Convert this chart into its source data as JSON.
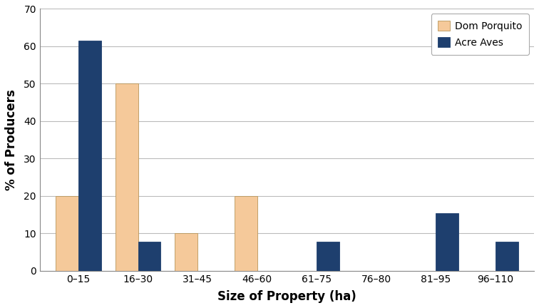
{
  "categories": [
    "0–15",
    "16–30",
    "31–45",
    "46–60",
    "61–75",
    "76–80",
    "81–95",
    "96–110"
  ],
  "dom_porquito": [
    20,
    50,
    10,
    20,
    0,
    0,
    0,
    0
  ],
  "acre_aves": [
    61.5,
    7.7,
    0,
    0,
    7.7,
    0,
    15.4,
    7.7
  ],
  "dom_porquito_color": "#f5c99a",
  "acre_aves_color": "#1e3f6e",
  "dom_porquito_edge": "#b8965a",
  "acre_aves_edge": "#1e3f6e",
  "ylabel": "% of Producers",
  "xlabel": "Size of Property (ha)",
  "ylim": [
    0,
    70
  ],
  "yticks": [
    0,
    10,
    20,
    30,
    40,
    50,
    60,
    70
  ],
  "legend_dom": "Dom Porquito",
  "legend_acre": "Acre Aves",
  "bar_width": 0.38,
  "bg_color": "#ffffff",
  "grid_color": "#bbbbbb",
  "tick_fontsize": 10,
  "label_fontsize": 12
}
